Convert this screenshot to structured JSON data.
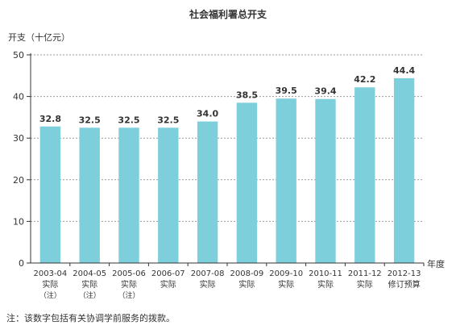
{
  "chart_data": {
    "type": "bar",
    "title": "社会福利署总开支",
    "ylabel": "开支（十亿元）",
    "xlabel": "年度",
    "ylim": [
      0,
      50
    ],
    "yticks": [
      0,
      10,
      20,
      30,
      40,
      50
    ],
    "grid": true,
    "bar_color": "#7ecfdc",
    "categories": [
      "2003-04",
      "2004-05",
      "2005-06",
      "2006-07",
      "2007-08",
      "2008-09",
      "2009-10",
      "2010-11",
      "2011-12",
      "2012-13"
    ],
    "category_sublabels": [
      "实际",
      "实际",
      "实际",
      "实际",
      "实际",
      "实际",
      "实际",
      "实际",
      "实际",
      "修订预算"
    ],
    "category_notes": [
      "（注）",
      "（注）",
      "（注）",
      "",
      "",
      "",
      "",
      "",
      "",
      ""
    ],
    "values": [
      32.8,
      32.5,
      32.5,
      32.5,
      34.0,
      38.5,
      39.5,
      39.4,
      42.2,
      44.4
    ],
    "value_labels": [
      "32.8",
      "32.5",
      "32.5",
      "32.5",
      "34.0",
      "38.5",
      "39.5",
      "39.4",
      "42.2",
      "44.4"
    ]
  },
  "footnote": "注：该数字包括有关协调学前服务的拨款。"
}
